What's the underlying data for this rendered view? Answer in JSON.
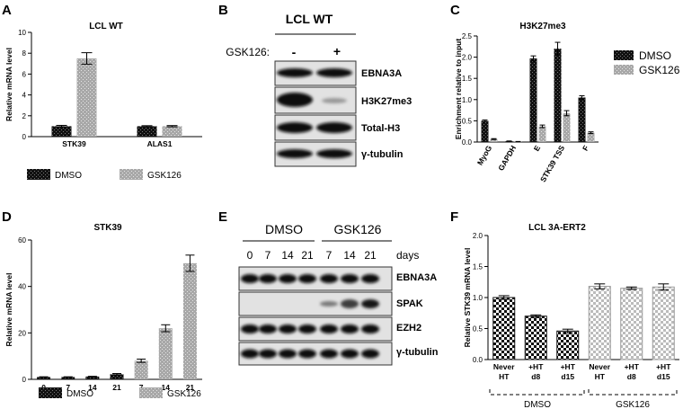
{
  "panels": {
    "A": {
      "letter": "A",
      "title": "LCL WT",
      "legend": [
        "DMSO",
        "GSK126"
      ]
    },
    "B": {
      "letter": "B",
      "title": "LCL WT",
      "treatment_label": "GSK126:",
      "lanes": [
        "-",
        "+"
      ],
      "bands": [
        "EBNA3A",
        "H3K27me3",
        "Total-H3",
        "γ-tubulin"
      ]
    },
    "C": {
      "letter": "C",
      "title": "H3K27me3",
      "legend": [
        "DMSO",
        "GSK126"
      ]
    },
    "D": {
      "letter": "D",
      "title": "STK39",
      "legend": [
        "DMSO",
        "GSK126"
      ]
    },
    "E": {
      "letter": "E",
      "groups": [
        "DMSO",
        "GSK126"
      ],
      "days": [
        "0",
        "7",
        "14",
        "21",
        "7",
        "14",
        "21"
      ],
      "days_label": "days",
      "bands": [
        "EBNA3A",
        "SPAK",
        "EZH2",
        "γ-tubulin"
      ]
    },
    "F": {
      "letter": "F",
      "title": "LCL 3A-ERT2",
      "groups": [
        "DMSO",
        "GSK126"
      ]
    }
  },
  "chart_data": [
    {
      "panel": "A",
      "type": "bar",
      "title": "LCL WT",
      "xlabel": "",
      "ylabel": "Relative mRNA level",
      "ylim": [
        0,
        10
      ],
      "yticks": [
        0,
        2,
        4,
        6,
        8,
        10
      ],
      "categories": [
        "STK39",
        "ALAS1"
      ],
      "series": [
        {
          "name": "DMSO",
          "values": [
            1.0,
            1.0
          ],
          "errors": [
            0.08,
            0.05
          ],
          "color": "#111111"
        },
        {
          "name": "GSK126",
          "values": [
            7.5,
            1.0
          ],
          "errors": [
            0.55,
            0.06
          ],
          "color": "#a8a8a8"
        }
      ]
    },
    {
      "panel": "C",
      "type": "bar",
      "title": "H3K27me3",
      "xlabel": "",
      "ylabel": "Enrichment relative to input",
      "ylim": [
        0,
        2.5
      ],
      "yticks": [
        "0.0",
        "0.5",
        "1.0",
        "1.5",
        "2.0",
        "2.5"
      ],
      "categories": [
        "MyoG",
        "GAPDH",
        "E",
        "STK39 TSS",
        "F"
      ],
      "series": [
        {
          "name": "DMSO",
          "values": [
            0.5,
            0.02,
            1.97,
            2.2,
            1.05
          ],
          "errors": [
            0.02,
            0.005,
            0.06,
            0.15,
            0.04
          ],
          "color": "#111111"
        },
        {
          "name": "GSK126",
          "values": [
            0.07,
            0.01,
            0.37,
            0.68,
            0.22
          ],
          "errors": [
            0.01,
            0.003,
            0.03,
            0.06,
            0.02
          ],
          "color": "#a8a8a8"
        }
      ]
    },
    {
      "panel": "D",
      "type": "bar",
      "title": "STK39",
      "xlabel": "",
      "ylabel": "Relative mRNA level",
      "ylim": [
        0,
        60
      ],
      "yticks": [
        0,
        20,
        40,
        60
      ],
      "categories": [
        "0",
        "7",
        "14",
        "21",
        "7",
        "14",
        "21"
      ],
      "series": [
        {
          "name": "DMSO",
          "values": [
            1.0,
            1.0,
            1.2,
            2.2,
            null,
            null,
            null
          ],
          "errors": [
            0.1,
            0.1,
            0.1,
            0.3,
            null,
            null,
            null
          ],
          "color": "#111111"
        },
        {
          "name": "GSK126",
          "values": [
            null,
            null,
            null,
            null,
            8.0,
            22.0,
            50.0
          ],
          "errors": [
            null,
            null,
            null,
            null,
            0.7,
            1.5,
            3.5
          ],
          "color": "#a8a8a8"
        }
      ]
    },
    {
      "panel": "F",
      "type": "bar",
      "title": "LCL 3A-ERT2",
      "xlabel": "",
      "ylabel": "Relative STK39 mRNA level",
      "ylim": [
        0,
        2.0
      ],
      "yticks": [
        "0.0",
        "0.5",
        "1.0",
        "1.5",
        "2.0"
      ],
      "categories": [
        [
          "Never",
          "HT"
        ],
        [
          "+HT",
          "d8"
        ],
        [
          "+HT",
          "d15"
        ],
        [
          "Never",
          "HT"
        ],
        [
          "+HT",
          "d8"
        ],
        [
          "+HT",
          "d15"
        ]
      ],
      "values": [
        1.0,
        0.7,
        0.46,
        1.18,
        1.15,
        1.17
      ],
      "errors": [
        0.03,
        0.02,
        0.03,
        0.04,
        0.02,
        0.05
      ],
      "colors": [
        "#111111",
        "#111111",
        "#111111",
        "#b5b5b5",
        "#b5b5b5",
        "#b5b5b5"
      ]
    }
  ]
}
